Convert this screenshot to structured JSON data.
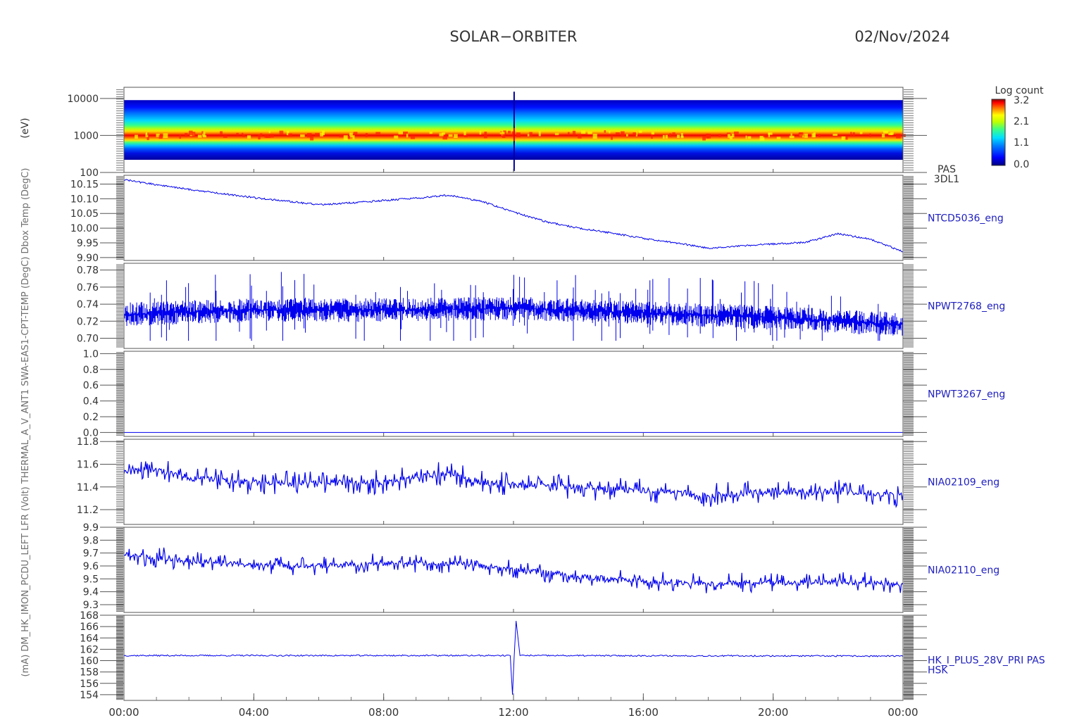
{
  "header": {
    "mission": "SOLAR−ORBITER",
    "date": "02/Nov/2024"
  },
  "x_axis": {
    "tick_labels": [
      "00:00",
      "04:00",
      "08:00",
      "12:00",
      "16:00",
      "20:00",
      "00:00"
    ]
  },
  "left_labels": {
    "energy": "(eV)",
    "stacked": "(mA) DM_HK_IMON_PCDU_LEFT LFR (Volt) THERMAL_A_V_ANT1 SWA-EAS1-CPT-TEMP (DegC) Dbox Temp (DegC)"
  },
  "colorbar": {
    "title": "Log count",
    "tick_labels": [
      "3.2",
      "2.1",
      "1.1",
      "0.0"
    ],
    "colors": [
      "#00007f",
      "#0000ff",
      "#0080ff",
      "#00e0ff",
      "#40ff80",
      "#c0ff00",
      "#ffff00",
      "#ff8000",
      "#ff0000",
      "#8b0000"
    ]
  },
  "chart_data": [
    {
      "type": "heatmap",
      "panel": "energy-spectrogram",
      "ylabel": "(eV)",
      "yscale": "log",
      "ylim": [
        100,
        20000
      ],
      "y_tick_labels": [
        "10000",
        "1000",
        "100"
      ],
      "right_labels": [
        "PAS",
        "3DL1"
      ],
      "color_scale": {
        "label": "Log count",
        "range": [
          0.0,
          3.2
        ]
      },
      "x_hours": [
        0,
        2,
        4,
        6,
        8,
        10,
        12,
        14,
        16,
        18,
        20,
        22,
        24
      ],
      "peak_energy_eV": [
        1000,
        1050,
        1000,
        1000,
        1000,
        1000,
        1050,
        1050,
        1000,
        950,
        950,
        950,
        1000
      ],
      "energy_range_eV": [
        220,
        9000
      ],
      "event": {
        "time": "12:00",
        "description_value": "spike"
      }
    },
    {
      "type": "line",
      "panel": "NTCD5036_eng",
      "series_label": "NTCD5036_eng",
      "ylim": [
        9.89,
        10.18
      ],
      "y_tick_labels": [
        "10.15",
        "10.10",
        "10.05",
        "10.00",
        "9.95",
        "9.90"
      ],
      "y_ticks": [
        10.15,
        10.1,
        10.05,
        10.0,
        9.95,
        9.9
      ],
      "x_hours": [
        0,
        1,
        2,
        3,
        4,
        5,
        6,
        7,
        8,
        9,
        10,
        11,
        12,
        13,
        14,
        15,
        16,
        17,
        18,
        19,
        20,
        21,
        22,
        23,
        24
      ],
      "values": [
        10.165,
        10.148,
        10.132,
        10.118,
        10.104,
        10.092,
        10.08,
        10.086,
        10.094,
        10.102,
        10.112,
        10.092,
        10.055,
        10.022,
        10.0,
        9.984,
        9.965,
        9.95,
        9.932,
        9.94,
        9.946,
        9.952,
        9.981,
        9.962,
        9.92
      ]
    },
    {
      "type": "line",
      "panel": "NPWT2768_eng",
      "series_label": "NPWT2768_eng",
      "ylim": [
        0.688,
        0.788
      ],
      "y_tick_labels": [
        "0.78",
        "0.76",
        "0.74",
        "0.72",
        "0.70"
      ],
      "y_ticks": [
        0.78,
        0.76,
        0.74,
        0.72,
        0.7
      ],
      "x_hours": [
        0,
        4,
        8,
        12,
        16,
        20,
        24
      ],
      "values": [
        0.728,
        0.733,
        0.733,
        0.735,
        0.73,
        0.724,
        0.716
      ],
      "noise_range": [
        0.697,
        0.785
      ]
    },
    {
      "type": "line",
      "panel": "NPWT3267_eng",
      "series_label": "NPWT3267_eng",
      "ylim": [
        -0.05,
        1.03
      ],
      "y_tick_labels": [
        "1.0",
        "0.8",
        "0.6",
        "0.4",
        "0.2",
        "0.0"
      ],
      "y_ticks": [
        1.0,
        0.8,
        0.6,
        0.4,
        0.2,
        0.0
      ],
      "x_hours": [
        0,
        24
      ],
      "values": [
        0.0,
        0.0
      ]
    },
    {
      "type": "line",
      "panel": "NIA02109_eng",
      "series_label": "NIA02109_eng",
      "ylim": [
        11.07,
        11.82
      ],
      "y_tick_labels": [
        "11.8",
        "11.6",
        "11.4",
        "11.2"
      ],
      "y_ticks": [
        11.8,
        11.6,
        11.4,
        11.2
      ],
      "x_hours": [
        0,
        1,
        2,
        3,
        4,
        5,
        6,
        7,
        8,
        9,
        10,
        11,
        12,
        13,
        14,
        15,
        16,
        17,
        18,
        19,
        20,
        21,
        22,
        23,
        24
      ],
      "values": [
        11.53,
        11.55,
        11.48,
        11.46,
        11.44,
        11.44,
        11.44,
        11.44,
        11.44,
        11.49,
        11.52,
        11.44,
        11.42,
        11.41,
        11.4,
        11.38,
        11.37,
        11.35,
        11.33,
        11.34,
        11.36,
        11.36,
        11.36,
        11.35,
        11.32
      ]
    },
    {
      "type": "line",
      "panel": "NIA02110_eng",
      "series_label": "NIA02110_eng",
      "ylim": [
        9.24,
        9.9
      ],
      "y_tick_labels": [
        "9.9",
        "9.8",
        "9.7",
        "9.6",
        "9.5",
        "9.4",
        "9.3"
      ],
      "y_ticks": [
        9.9,
        9.8,
        9.7,
        9.6,
        9.5,
        9.4,
        9.3
      ],
      "x_hours": [
        0,
        1,
        2,
        3,
        4,
        5,
        6,
        7,
        8,
        9,
        10,
        11,
        12,
        13,
        14,
        15,
        16,
        17,
        18,
        19,
        20,
        21,
        22,
        23,
        24
      ],
      "values": [
        9.69,
        9.67,
        9.64,
        9.62,
        9.61,
        9.6,
        9.6,
        9.61,
        9.62,
        9.62,
        9.62,
        9.6,
        9.57,
        9.55,
        9.52,
        9.5,
        9.48,
        9.47,
        9.46,
        9.47,
        9.47,
        9.47,
        9.48,
        9.47,
        9.46
      ]
    },
    {
      "type": "line",
      "panel": "HK_I_PLUS_28V_PRI",
      "series_label": "HK_I_PLUS_28V_PRI",
      "right_labels": [
        "HK_I_PLUS_28V_PRI PAS",
        "HSK"
      ],
      "ylim": [
        153,
        168
      ],
      "y_tick_labels": [
        "168",
        "166",
        "164",
        "162",
        "160",
        "158",
        "156",
        "154"
      ],
      "y_ticks": [
        168,
        166,
        164,
        162,
        160,
        158,
        156,
        154
      ],
      "x_hours": [
        0,
        11.9,
        11.97,
        12.02,
        12.08,
        12.2,
        24
      ],
      "values": [
        160.9,
        160.9,
        154.0,
        160.5,
        167.0,
        160.9,
        160.8
      ]
    }
  ]
}
